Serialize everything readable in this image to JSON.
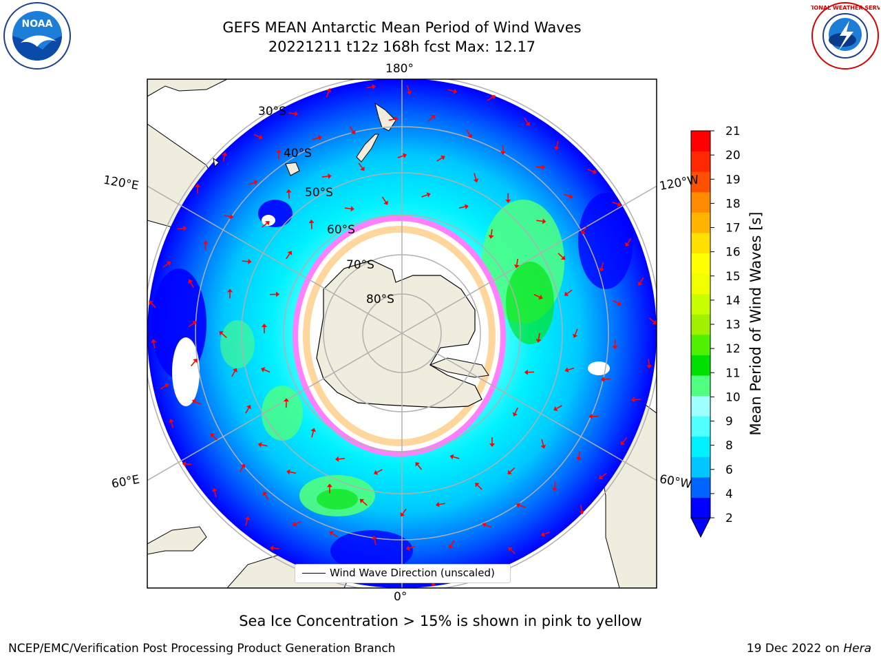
{
  "title": {
    "line1": "GEFS MEAN Antarctic Mean Period of Wind Waves",
    "line2": "20221211 t12z 168h fcst   Max: 12.17"
  },
  "logos": {
    "left": "NOAA",
    "right": "NATIONAL WEATHER SERVICE"
  },
  "map": {
    "longitude_labels": [
      "180°",
      "120°E",
      "120°W",
      "60°E",
      "60°W",
      "0°"
    ],
    "latitude_labels": [
      "30°S",
      "40°S",
      "50°S",
      "60°S",
      "70°S",
      "80°S"
    ],
    "legend_label": "Wind Wave Direction (unscaled)"
  },
  "colorbar": {
    "label": "Mean Period of Wind Waves [s]",
    "ticks": [
      "2",
      "4",
      "6",
      "8",
      "9",
      "10",
      "11",
      "12",
      "13",
      "14",
      "15",
      "16",
      "17",
      "18",
      "19",
      "20",
      "21"
    ],
    "colors": [
      "#0000ff",
      "#0064ff",
      "#00c8ff",
      "#00f0ff",
      "#50ffff",
      "#a0ffff",
      "#50ff80",
      "#00e000",
      "#50f000",
      "#a0f000",
      "#c8ff00",
      "#f0ff00",
      "#ffff00",
      "#ffe000",
      "#ffb400",
      "#ff8c00",
      "#ff5000",
      "#ff2800",
      "#ff0000"
    ]
  },
  "caption": "Sea Ice Concentration > 15% is shown in pink to yellow",
  "footer": {
    "left": "NCEP/EMC/Verification Post Processing Product Generation Branch",
    "right_prefix": "19 Dec 2022 on ",
    "right_italic": "Hera"
  }
}
